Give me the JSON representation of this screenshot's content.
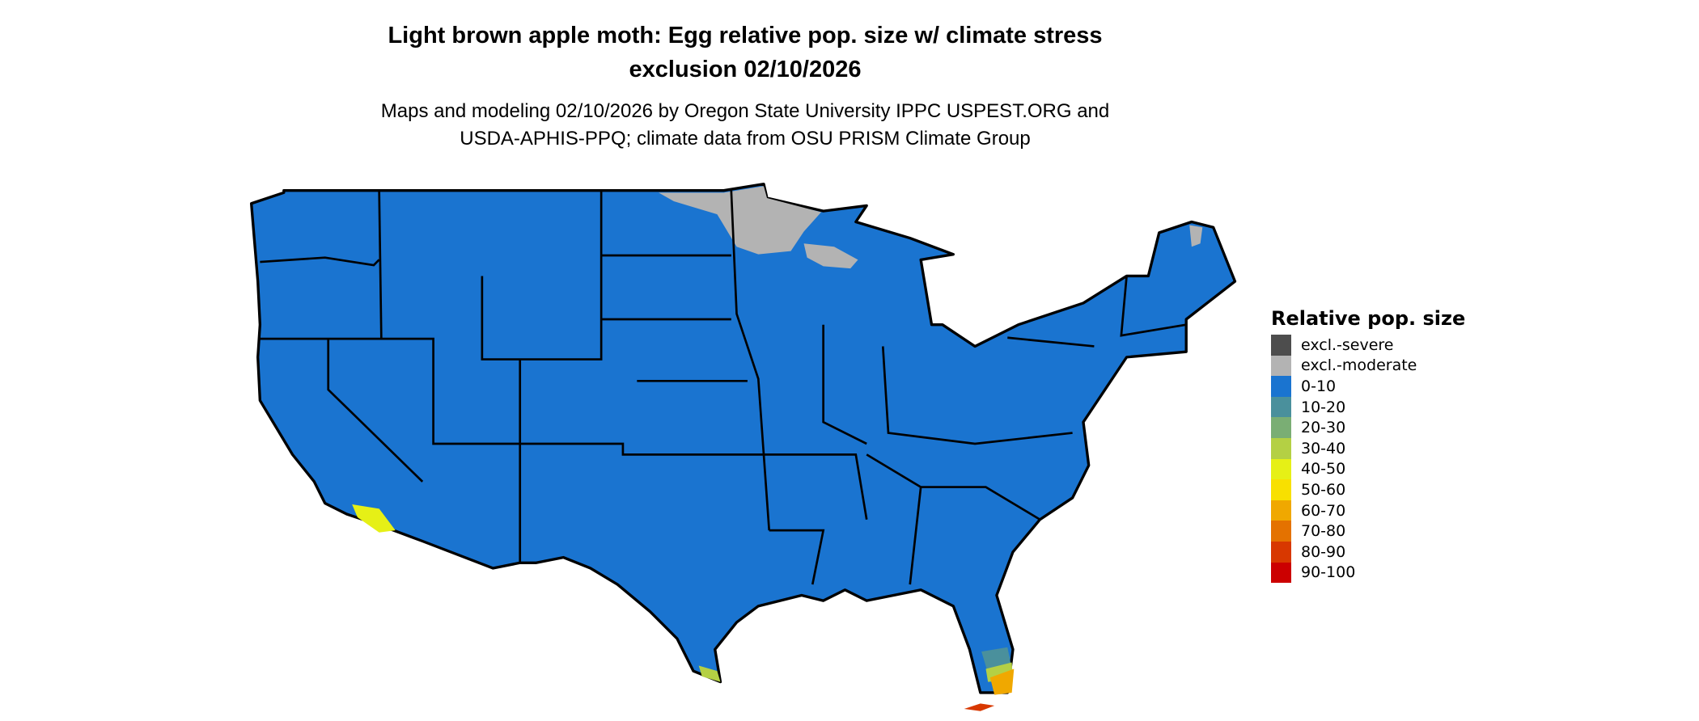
{
  "title": {
    "line1": "Light brown apple moth: Egg relative pop. size w/ climate stress",
    "line2": "exclusion 02/10/2026"
  },
  "subtitle": {
    "line1": "Maps and modeling 02/10/2026 by Oregon State University IPPC USPEST.ORG and",
    "line2": "USDA-APHIS-PPQ; climate data from OSU PRISM Climate Group"
  },
  "legend": {
    "title": "Relative pop. size",
    "items": [
      {
        "label": "excl.-severe",
        "color": "#4d4d4d"
      },
      {
        "label": "excl.-moderate",
        "color": "#b3b3b3"
      },
      {
        "label": "0-10",
        "color": "#1a74d0"
      },
      {
        "label": "10-20",
        "color": "#4a909c"
      },
      {
        "label": "20-30",
        "color": "#7aae74"
      },
      {
        "label": "30-40",
        "color": "#b4d044"
      },
      {
        "label": "40-50",
        "color": "#e6f016"
      },
      {
        "label": "50-60",
        "color": "#f8e000"
      },
      {
        "label": "60-70",
        "color": "#f0a800"
      },
      {
        "label": "70-80",
        "color": "#e47200"
      },
      {
        "label": "80-90",
        "color": "#d83800"
      },
      {
        "label": "90-100",
        "color": "#cc0000"
      }
    ]
  },
  "map": {
    "region": "Contiguous United States",
    "dominant_class": "0-10",
    "excluded_moderate_areas": [
      "northern Minnesota",
      "northern Wisconsin",
      "northern Maine"
    ],
    "higher_classes_areas": [
      "southern Florida",
      "southern California coast",
      "southern Texas tip"
    ]
  }
}
